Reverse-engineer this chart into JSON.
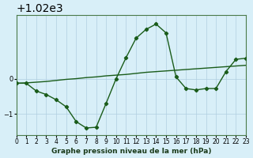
{
  "background_color": "#d8eff8",
  "grid_color": "#b0cfe0",
  "line_color": "#1a5c1a",
  "title": "Graphe pression niveau de la mer (hPa)",
  "ylabel": "",
  "xlabel": "Graphe pression niveau de la mer (hPa)",
  "xlim": [
    0,
    23
  ],
  "ylim": [
    1018.4,
    1021.8
  ],
  "yticks": [
    1019,
    1020
  ],
  "xticks": [
    0,
    1,
    2,
    3,
    4,
    5,
    6,
    7,
    8,
    9,
    10,
    11,
    12,
    13,
    14,
    15,
    16,
    17,
    18,
    19,
    20,
    21,
    22,
    23
  ],
  "line1_x": [
    0,
    1,
    2,
    3,
    4,
    5,
    6,
    7,
    8,
    9,
    10,
    11,
    12,
    13,
    14,
    15,
    16,
    17,
    18,
    19,
    20,
    21,
    22,
    23
  ],
  "line1_y": [
    1019.87,
    1019.88,
    1019.9,
    1019.92,
    1019.95,
    1019.98,
    1020.0,
    1020.03,
    1020.05,
    1020.08,
    1020.1,
    1020.12,
    1020.15,
    1020.18,
    1020.2,
    1020.22,
    1020.24,
    1020.26,
    1020.28,
    1020.3,
    1020.32,
    1020.34,
    1020.36,
    1020.38
  ],
  "line2_x": [
    0,
    1,
    2,
    3,
    4,
    5,
    6,
    7,
    8,
    9,
    10,
    11,
    12,
    13,
    14,
    15,
    16,
    17,
    18,
    19,
    20,
    21,
    22,
    23
  ],
  "line2_y": [
    1019.87,
    1019.87,
    1019.65,
    1019.55,
    1019.4,
    1019.2,
    1018.78,
    1018.6,
    1018.62,
    1019.3,
    1020.0,
    1020.6,
    1021.15,
    1021.4,
    1021.55,
    1021.3,
    1020.05,
    1019.72,
    1019.68,
    1019.72,
    1019.72,
    1020.2,
    1020.55,
    1020.58
  ]
}
